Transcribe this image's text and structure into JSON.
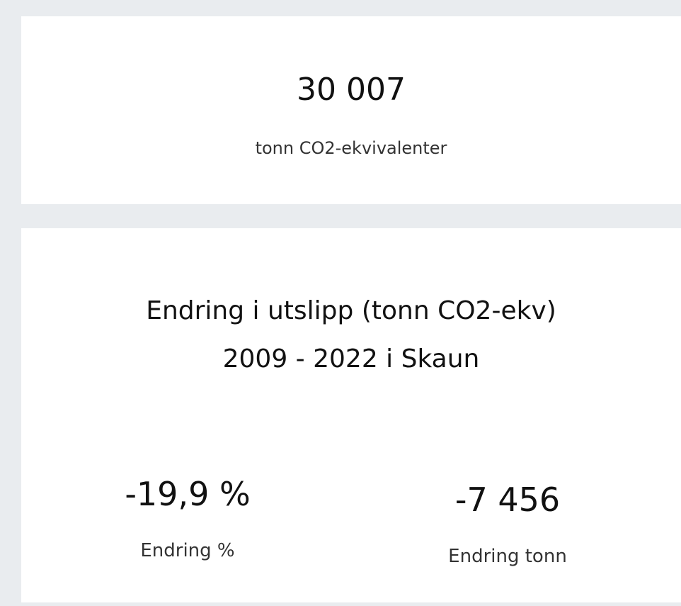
{
  "kpi_total": {
    "value": "30 007",
    "label": "tonn CO2-ekvivalenter"
  },
  "change_card": {
    "title_line1": "Endring i utslipp (tonn CO2-ekv)",
    "title_line2": "2009 - 2022 i Skaun",
    "metrics": [
      {
        "value": "-19,9 %",
        "label": "Endring %"
      },
      {
        "value": "-7 456",
        "label": "Endring tonn"
      }
    ]
  }
}
